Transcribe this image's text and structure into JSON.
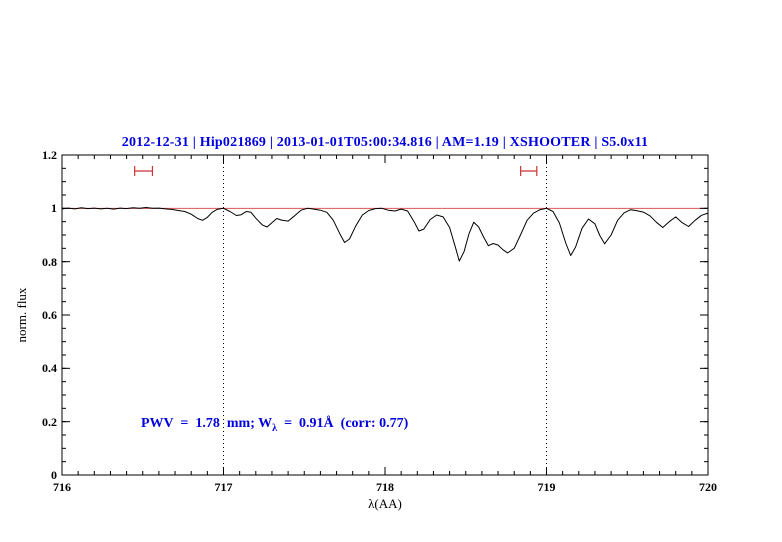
{
  "title": {
    "text": "2012-12-31 | Hip021869 | 2013-01-01T05:00:34.816 | AM=1.19 | XSHOOTER | S5.0x11"
  },
  "annotation": {
    "prefix": "PWV  =  1.78  mm; W",
    "subscript": "λ",
    "suffix": "  =  0.91Å  (corr: 0.77)"
  },
  "axes": {
    "xlabel": "λ(AA)",
    "ylabel": "norm. flux"
  },
  "colors": {
    "title": "#0000e0",
    "annotation": "#0000e0",
    "spectrum": "#000000",
    "continuum": "#dd5555",
    "marker": "#cc3333",
    "axis": "#000000",
    "background": "#ffffff"
  },
  "chart_data": {
    "type": "line",
    "title": "2012-12-31 | Hip021869 | 2013-01-01T05:00:34.816 | AM=1.19 | XSHOOTER | S5.0x11",
    "xlabel": "λ(AA)",
    "ylabel": "norm. flux",
    "xlim": [
      716,
      720
    ],
    "ylim": [
      0,
      1.2
    ],
    "grid": false,
    "x_ticks": {
      "values": [
        716,
        717,
        718,
        719,
        720
      ],
      "labels": [
        "716",
        "717",
        "718",
        "719",
        "720"
      ]
    },
    "y_ticks": {
      "values": [
        0,
        0.2,
        0.4,
        0.6,
        0.8,
        1,
        1.2
      ],
      "labels": [
        "0",
        "0.2",
        "0.4",
        "0.6",
        "0.8",
        "1",
        "1.2"
      ]
    },
    "x_minor_step": 0.1,
    "y_minor_step": 0.05,
    "vlines": [
      717,
      719
    ],
    "continuum": 1.0,
    "markers": [
      {
        "x1": 716.45,
        "x2": 716.56,
        "y": 1.14
      },
      {
        "x1": 718.84,
        "x2": 718.94,
        "y": 1.14
      }
    ],
    "series": [
      {
        "name": "spectrum",
        "points": [
          [
            716.0,
            0.998
          ],
          [
            716.04,
            1.001
          ],
          [
            716.08,
            0.998
          ],
          [
            716.12,
            1.002
          ],
          [
            716.16,
            0.999
          ],
          [
            716.2,
            1.001
          ],
          [
            716.24,
            0.998
          ],
          [
            716.28,
            1.0
          ],
          [
            716.32,
            0.997
          ],
          [
            716.36,
            1.001
          ],
          [
            716.4,
            0.999
          ],
          [
            716.44,
            1.002
          ],
          [
            716.48,
            1.0
          ],
          [
            716.52,
            1.003
          ],
          [
            716.56,
            1.0
          ],
          [
            716.6,
            1.001
          ],
          [
            716.64,
            0.998
          ],
          [
            716.68,
            0.996
          ],
          [
            716.72,
            0.992
          ],
          [
            716.76,
            0.988
          ],
          [
            716.8,
            0.978
          ],
          [
            716.84,
            0.962
          ],
          [
            716.87,
            0.955
          ],
          [
            716.9,
            0.966
          ],
          [
            716.93,
            0.985
          ],
          [
            716.96,
            0.996
          ],
          [
            717.0,
            1.0
          ],
          [
            717.04,
            0.988
          ],
          [
            717.08,
            0.973
          ],
          [
            717.11,
            0.976
          ],
          [
            717.14,
            0.988
          ],
          [
            717.17,
            0.985
          ],
          [
            717.2,
            0.963
          ],
          [
            717.24,
            0.938
          ],
          [
            717.27,
            0.93
          ],
          [
            717.3,
            0.946
          ],
          [
            717.33,
            0.962
          ],
          [
            717.36,
            0.956
          ],
          [
            717.4,
            0.952
          ],
          [
            717.44,
            0.972
          ],
          [
            717.48,
            0.993
          ],
          [
            717.52,
            1.0
          ],
          [
            717.56,
            0.997
          ],
          [
            717.6,
            0.993
          ],
          [
            717.64,
            0.985
          ],
          [
            717.68,
            0.955
          ],
          [
            717.72,
            0.905
          ],
          [
            717.75,
            0.872
          ],
          [
            717.78,
            0.885
          ],
          [
            717.82,
            0.935
          ],
          [
            717.86,
            0.975
          ],
          [
            717.9,
            0.992
          ],
          [
            717.94,
            0.999
          ],
          [
            717.98,
            1.0
          ],
          [
            718.02,
            0.993
          ],
          [
            718.06,
            0.99
          ],
          [
            718.1,
            0.997
          ],
          [
            718.14,
            0.99
          ],
          [
            718.18,
            0.95
          ],
          [
            718.21,
            0.915
          ],
          [
            718.24,
            0.922
          ],
          [
            718.28,
            0.958
          ],
          [
            718.32,
            0.975
          ],
          [
            718.36,
            0.968
          ],
          [
            718.4,
            0.928
          ],
          [
            718.44,
            0.845
          ],
          [
            718.46,
            0.802
          ],
          [
            718.49,
            0.838
          ],
          [
            718.52,
            0.905
          ],
          [
            718.55,
            0.948
          ],
          [
            718.58,
            0.93
          ],
          [
            718.61,
            0.893
          ],
          [
            718.64,
            0.86
          ],
          [
            718.67,
            0.868
          ],
          [
            718.7,
            0.862
          ],
          [
            718.73,
            0.845
          ],
          [
            718.76,
            0.833
          ],
          [
            718.8,
            0.85
          ],
          [
            718.84,
            0.902
          ],
          [
            718.88,
            0.955
          ],
          [
            718.92,
            0.982
          ],
          [
            718.96,
            0.995
          ],
          [
            719.0,
            1.0
          ],
          [
            719.04,
            0.988
          ],
          [
            719.08,
            0.945
          ],
          [
            719.12,
            0.868
          ],
          [
            719.15,
            0.823
          ],
          [
            719.18,
            0.855
          ],
          [
            719.22,
            0.925
          ],
          [
            719.26,
            0.96
          ],
          [
            719.3,
            0.942
          ],
          [
            719.33,
            0.898
          ],
          [
            719.36,
            0.867
          ],
          [
            719.4,
            0.9
          ],
          [
            719.44,
            0.955
          ],
          [
            719.48,
            0.983
          ],
          [
            719.52,
            0.995
          ],
          [
            719.56,
            0.991
          ],
          [
            719.6,
            0.986
          ],
          [
            719.64,
            0.972
          ],
          [
            719.68,
            0.948
          ],
          [
            719.72,
            0.928
          ],
          [
            719.76,
            0.95
          ],
          [
            719.8,
            0.968
          ],
          [
            719.84,
            0.946
          ],
          [
            719.88,
            0.932
          ],
          [
            719.92,
            0.955
          ],
          [
            719.96,
            0.974
          ],
          [
            720.0,
            0.982
          ]
        ]
      }
    ]
  }
}
